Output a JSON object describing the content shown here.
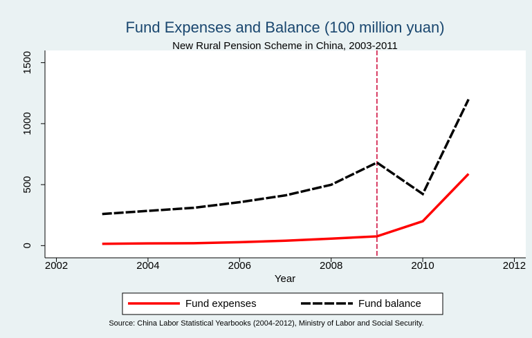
{
  "chart_data": {
    "type": "line",
    "title": "Fund Expenses and Balance (100 million yuan)",
    "subtitle": "New Rural Pension Scheme in China, 2003-2011",
    "x_label": "Year",
    "source": "Source: China Labor Statistical Yearbooks (2004-2012), Ministry of Labor and Social Security.",
    "x": [
      2003,
      2004,
      2005,
      2006,
      2007,
      2008,
      2009,
      2010,
      2011
    ],
    "series": [
      {
        "name": "Fund expenses",
        "color": "#ff0000",
        "values": [
          15,
          18,
          20,
          28,
          40,
          57,
          76,
          200,
          588
        ]
      },
      {
        "name": "Fund balance",
        "color": "#000000",
        "values": [
          259,
          285,
          310,
          356,
          412,
          499,
          681,
          423,
          1199
        ]
      }
    ],
    "xlim": [
      2001.75,
      2012.25
    ],
    "xticks": [
      2002,
      2004,
      2006,
      2008,
      2010,
      2012
    ],
    "ylim": [
      -100,
      1600
    ],
    "yticks": [
      0,
      500,
      1000,
      1500
    ],
    "reference_line": {
      "x": 2009,
      "color": "#cc0033"
    },
    "legend": "bottom"
  }
}
